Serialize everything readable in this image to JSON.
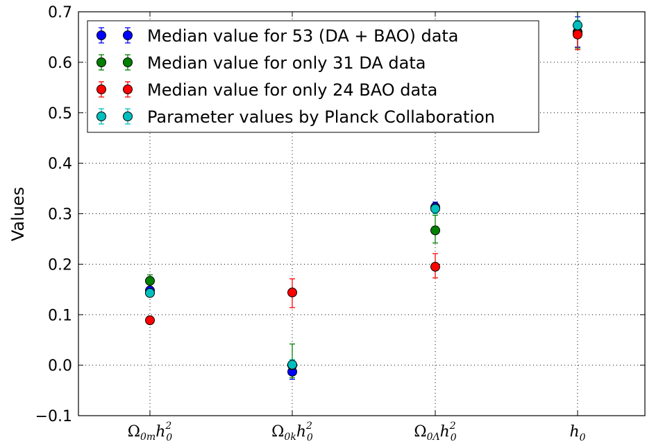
{
  "chart_data": {
    "type": "scatter",
    "ylabel": "Values",
    "xlabel": "",
    "ylim": [
      -0.1,
      0.7
    ],
    "yticks": [
      "−0.1",
      "0.0",
      "0.1",
      "0.2",
      "0.3",
      "0.4",
      "0.5",
      "0.6",
      "0.7"
    ],
    "categories": [
      {
        "id": "omega_m",
        "base": "Ω",
        "sub": "0m",
        "var": "h",
        "sup": "2",
        "subvar": "0"
      },
      {
        "id": "omega_k",
        "base": "Ω",
        "sub": "0k",
        "var": "h",
        "sup": "2",
        "subvar": "0"
      },
      {
        "id": "omega_l",
        "base": "Ω",
        "sub": "0Λ",
        "var": "h",
        "sup": "2",
        "subvar": "0"
      },
      {
        "id": "h0",
        "base": "",
        "sub": "",
        "var": "h",
        "sup": "",
        "subvar": "0"
      }
    ],
    "grid": true,
    "legend_position": "top-left",
    "series": [
      {
        "name": "Median value for 53 (DA + BAO) data",
        "color": "#0000ff",
        "values": [
          0.148,
          -0.013,
          0.313,
          0.66
        ],
        "err_up": [
          0.005,
          0.01,
          0.01,
          0.03
        ],
        "err_down": [
          0.005,
          0.015,
          0.01,
          0.03
        ]
      },
      {
        "name": "Median value for only 31 DA data",
        "color": "#008000",
        "values": [
          0.167,
          0.0,
          0.267,
          0.658
        ],
        "err_up": [
          0.012,
          0.042,
          0.03,
          0.042
        ],
        "err_down": [
          0.012,
          0.025,
          0.025,
          0.03
        ]
      },
      {
        "name": "Median value for only 24 BAO data",
        "color": "#ff0000",
        "values": [
          0.089,
          0.144,
          0.195,
          0.655
        ],
        "err_up": [
          0.005,
          0.027,
          0.026,
          0.025
        ],
        "err_down": [
          0.005,
          0.03,
          0.022,
          0.03
        ]
      },
      {
        "name": "Parameter values by Planck Collaboration",
        "color": "#00bfbf",
        "values": [
          0.143,
          0.001,
          0.31,
          0.673
        ],
        "err_up": [
          0.003,
          0.01,
          0.01,
          0.01
        ],
        "err_down": [
          0.003,
          0.01,
          0.01,
          0.01
        ]
      }
    ]
  }
}
